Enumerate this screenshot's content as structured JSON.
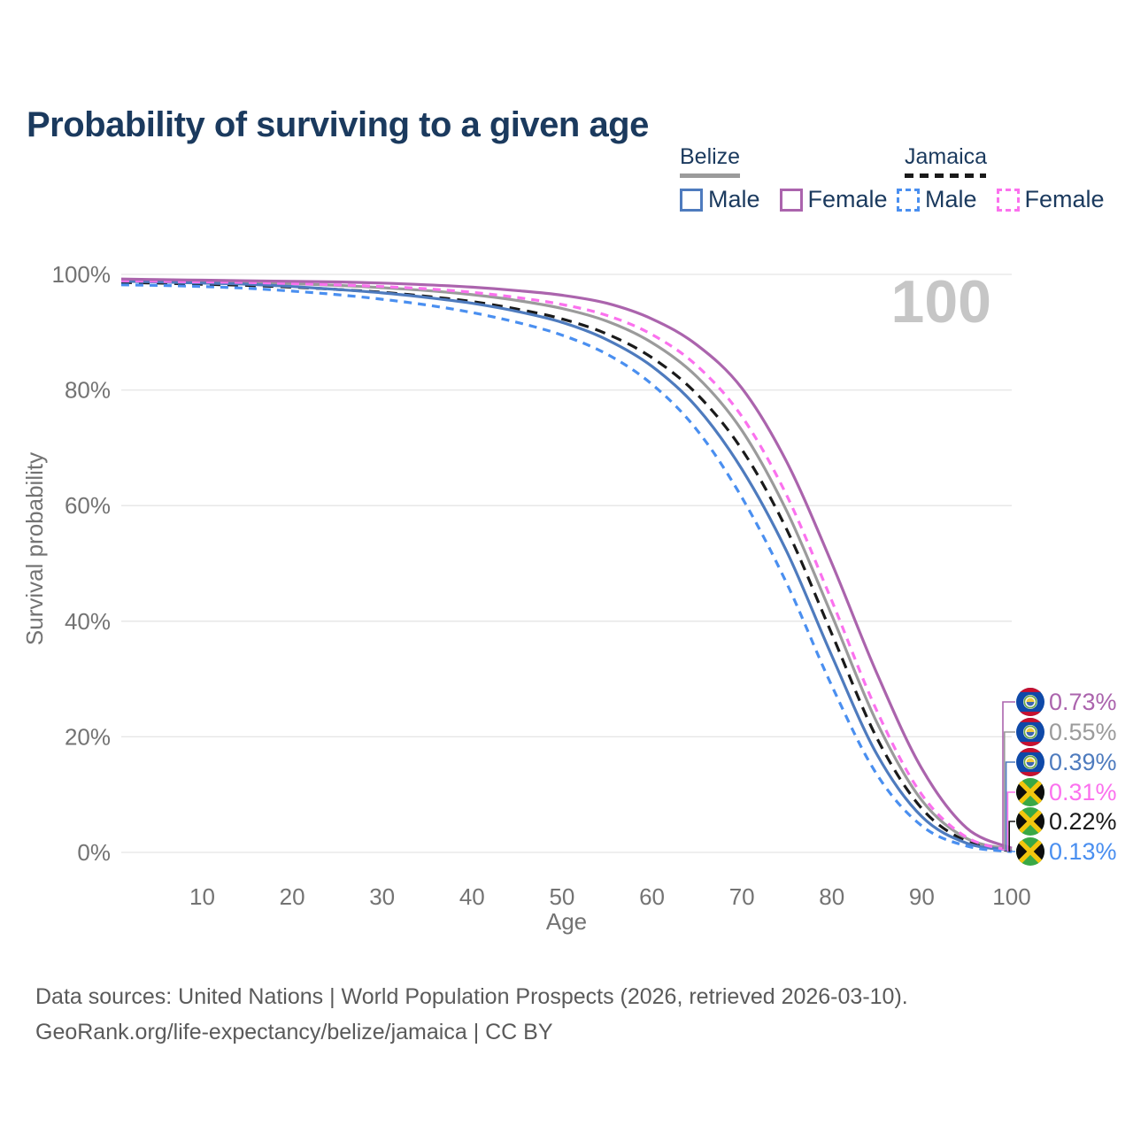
{
  "title": "Probability of surviving to a given age",
  "watermark": "100",
  "legend": {
    "groups": [
      {
        "country": "Belize",
        "underline": "solid",
        "underline_color": "#9b9b9b",
        "underline_width": 68,
        "items": [
          {
            "label": "Male",
            "color": "#4e7bbe",
            "dashed": false
          },
          {
            "label": "Female",
            "color": "#ab64ad",
            "dashed": false
          }
        ]
      },
      {
        "country": "Jamaica",
        "underline": "dashed",
        "underline_color": "#1a1a1a",
        "underline_width": 92,
        "items": [
          {
            "label": "Male",
            "color": "#4a8ff0",
            "dashed": true
          },
          {
            "label": "Female",
            "color": "#fb71ee",
            "dashed": true
          }
        ]
      }
    ]
  },
  "chart_data": {
    "type": "line",
    "title": "Probability of surviving to a given age",
    "xlabel": "Age",
    "ylabel": "Survival probability",
    "xlim": [
      1,
      100
    ],
    "ylim": [
      0,
      100
    ],
    "grid": "horizontal-only",
    "legend_position": "top-right",
    "x_ticks": [
      10,
      20,
      30,
      40,
      50,
      60,
      70,
      80,
      90,
      100
    ],
    "y_ticks": [
      {
        "value": 0,
        "label": "0%"
      },
      {
        "value": 20,
        "label": "20%"
      },
      {
        "value": 40,
        "label": "40%"
      },
      {
        "value": 60,
        "label": "60%"
      },
      {
        "value": 80,
        "label": "80%"
      },
      {
        "value": 100,
        "label": "100%"
      }
    ],
    "ages": [
      1,
      5,
      10,
      15,
      20,
      25,
      30,
      35,
      40,
      45,
      50,
      55,
      60,
      65,
      70,
      75,
      80,
      85,
      90,
      95,
      100
    ],
    "series": [
      {
        "name": "Belize Female",
        "country": "Belize",
        "sex": "Female",
        "color": "#ab64ad",
        "dash": "",
        "end_label": "0.73%",
        "flag": "belize",
        "values": [
          99.2,
          99.1,
          99.0,
          98.9,
          98.8,
          98.7,
          98.5,
          98.2,
          97.8,
          97.2,
          96.4,
          95.0,
          92.3,
          87.8,
          80.3,
          67.5,
          50.0,
          31.0,
          14.5,
          4.2,
          0.73
        ]
      },
      {
        "name": "Belize Both sexes",
        "country": "Belize",
        "sex": "Both",
        "color": "#9b9b9b",
        "dash": "",
        "end_label": "0.55%",
        "flag": "belize",
        "values": [
          99.0,
          98.9,
          98.8,
          98.6,
          98.4,
          98.1,
          97.7,
          97.2,
          96.5,
          95.5,
          94.1,
          91.9,
          88.2,
          82.3,
          73.0,
          59.0,
          41.0,
          22.5,
          9.0,
          2.4,
          0.55
        ]
      },
      {
        "name": "Belize Male",
        "country": "Belize",
        "sex": "Male",
        "color": "#4e7bbe",
        "dash": "",
        "end_label": "0.39%",
        "flag": "belize",
        "values": [
          98.8,
          98.7,
          98.5,
          98.3,
          97.9,
          97.4,
          96.8,
          96.0,
          95.0,
          93.6,
          91.7,
          88.7,
          84.1,
          77.0,
          66.3,
          52.0,
          34.0,
          17.0,
          6.2,
          1.6,
          0.39
        ]
      },
      {
        "name": "Jamaica Female",
        "country": "Jamaica",
        "sex": "Female",
        "color": "#fb71ee",
        "dash": "9 7",
        "end_label": "0.31%",
        "flag": "jamaica",
        "values": [
          98.9,
          98.8,
          98.7,
          98.6,
          98.4,
          98.2,
          97.9,
          97.5,
          96.9,
          96.0,
          94.8,
          92.9,
          89.6,
          84.2,
          75.4,
          61.7,
          43.5,
          24.5,
          10.0,
          2.6,
          0.31
        ]
      },
      {
        "name": "Jamaica Both sexes",
        "country": "Jamaica",
        "sex": "Both",
        "color": "#1a1a1a",
        "dash": "12 8",
        "end_label": "0.22%",
        "flag": "jamaica",
        "values": [
          98.6,
          98.5,
          98.3,
          98.1,
          97.8,
          97.4,
          96.9,
          96.2,
          95.3,
          94.0,
          92.3,
          89.7,
          85.6,
          79.3,
          69.7,
          55.8,
          37.8,
          19.8,
          7.6,
          1.9,
          0.22
        ]
      },
      {
        "name": "Jamaica Male",
        "country": "Jamaica",
        "sex": "Male",
        "color": "#4a8ff0",
        "dash": "9 7",
        "end_label": "0.13%",
        "flag": "jamaica",
        "values": [
          98.2,
          98.1,
          97.9,
          97.6,
          97.1,
          96.5,
          95.7,
          94.7,
          93.4,
          91.7,
          89.5,
          86.2,
          81.0,
          73.1,
          61.4,
          46.5,
          28.8,
          13.5,
          4.6,
          1.1,
          0.13
        ]
      }
    ]
  },
  "footer": {
    "line1": "Data sources: United Nations | World Population Prospects (2026, retrieved 2026-03-10).",
    "line2": "GeoRank.org/life-expectancy/belize/jamaica | CC BY"
  },
  "colors": {
    "title": "#1b3a5e",
    "axis_text": "#737373",
    "gridline": "#e5e5e5",
    "watermark": "#c6c6c6",
    "footer_text": "#5a5a5a"
  }
}
